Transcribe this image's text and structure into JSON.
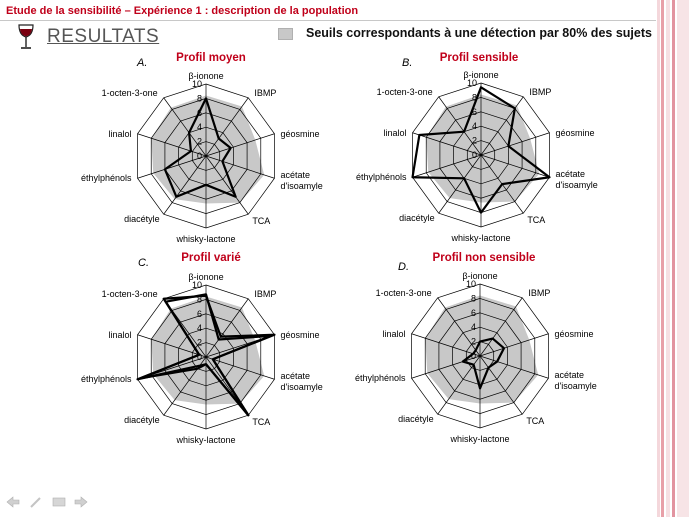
{
  "header": {
    "title": "Etude de la sensibilité – Expérience 1 : description de la population",
    "section": "RESULTATS",
    "legend_label": "Seuils correspondants à une détection par 80% des sujets"
  },
  "colors": {
    "title_red": "#c0001a",
    "threshold_fill": "#c8c8c8",
    "profile_line": "#000000",
    "grid": "#000000",
    "right_border": "#e8a0a8"
  },
  "icons": {
    "glass": "wine-glass-icon",
    "nav": [
      "arrow-left-icon",
      "pen-icon",
      "screen-icon",
      "arrow-right-icon"
    ]
  },
  "chart_data": [
    {
      "type": "radar",
      "letter": "A.",
      "title": "Profil moyen",
      "axes": [
        "β-ionone",
        "IBMP",
        "géosmine",
        "acétate d'isoamyle",
        "TCA",
        "whisky-lactone",
        "diacétyle",
        "éthylphénols",
        "linalol",
        "1-octen-3-one"
      ],
      "axis_labels": [
        [
          "β-ionone"
        ],
        [
          "IBMP"
        ],
        [
          "géosmine"
        ],
        [
          "acétate",
          "d'isoamyle"
        ],
        [
          "TCA"
        ],
        [
          "whisky-lactone"
        ],
        [
          "diacétyle"
        ],
        [
          "éthylphénols"
        ],
        [
          "linalol"
        ],
        [
          "1-octen-3-one"
        ]
      ],
      "ticks": [
        0,
        2,
        4,
        6,
        8,
        10
      ],
      "range": [
        0,
        10
      ],
      "series": [
        {
          "values": [
            8.4,
            8.5,
            7.2,
            8.5,
            8.0,
            6.6,
            7.4,
            7.7,
            8.0,
            8.3
          ]
        },
        {
          "values": [
            8.0,
            3.0,
            3.6,
            2.4,
            7.0,
            4.0,
            7.0,
            6.0,
            2.2,
            4.0
          ]
        }
      ]
    },
    {
      "type": "radar",
      "letter": "B.",
      "title": "Profil sensible",
      "axes": [
        "β-ionone",
        "IBMP",
        "géosmine",
        "acétate d'isoamyle",
        "TCA",
        "whisky-lactone",
        "diacétyle",
        "éthylphénols",
        "linalol",
        "1-octen-3-one"
      ],
      "axis_labels": [
        [
          "β-ionone"
        ],
        [
          "IBMP"
        ],
        [
          "géosmine"
        ],
        [
          "acétate",
          "d'isoamyle"
        ],
        [
          "TCA"
        ],
        [
          "whisky-lactone"
        ],
        [
          "diacétyle"
        ],
        [
          "éthylphénols"
        ],
        [
          "linalol"
        ],
        [
          "1-octen-3-one"
        ]
      ],
      "ticks": [
        0,
        2,
        4,
        6,
        8,
        10
      ],
      "range": [
        0,
        10
      ],
      "series": [
        {
          "values": [
            8.4,
            8.5,
            7.2,
            8.5,
            8.0,
            6.6,
            7.4,
            7.7,
            8.0,
            8.3
          ]
        },
        {
          "values": [
            9.4,
            8.0,
            4.0,
            10.0,
            5.0,
            8.0,
            4.0,
            10.0,
            9.0,
            4.0
          ]
        }
      ]
    },
    {
      "type": "radar",
      "letter": "C.",
      "title": "Profil varié",
      "axes": [
        "β-ionone",
        "IBMP",
        "géosmine",
        "acétate d'isoamyle",
        "TCA",
        "whisky-lactone",
        "diacétyle",
        "éthylphénols",
        "linalol",
        "1-octen-3-one"
      ],
      "axis_labels": [
        [
          "β-ionone"
        ],
        [
          "IBMP"
        ],
        [
          "géosmine"
        ],
        [
          "acétate",
          "d'isoamyle"
        ],
        [
          "TCA"
        ],
        [
          "whisky-lactone"
        ],
        [
          "diacétyle"
        ],
        [
          "éthylphénols"
        ],
        [
          "linalol"
        ],
        [
          "1-octen-3-one"
        ]
      ],
      "ticks": [
        0,
        2,
        4,
        6,
        8,
        10
      ],
      "range": [
        0,
        10
      ],
      "series": [
        {
          "values": [
            8.4,
            8.5,
            7.2,
            8.5,
            8.0,
            6.6,
            7.4,
            7.7,
            8.0,
            8.3
          ]
        },
        {
          "values": [
            8.5,
            3.5,
            10.0,
            1.0,
            10.0,
            1.0,
            1.5,
            10.0,
            1.0,
            10.0
          ]
        },
        {
          "values": [
            8.7,
            3.0,
            9.5,
            1.0,
            10.0,
            1.0,
            2.0,
            9.5,
            1.0,
            9.5
          ]
        }
      ]
    },
    {
      "type": "radar",
      "letter": "D.",
      "title": "Profil non sensible",
      "axes": [
        "β-ionone",
        "IBMP",
        "géosmine",
        "acétate d'isoamyle",
        "TCA",
        "whisky-lactone",
        "diacétyle",
        "éthylphénols",
        "linalol",
        "1-octen-3-one"
      ],
      "axis_labels": [
        [
          "β-ionone"
        ],
        [
          "IBMP"
        ],
        [
          "géosmine"
        ],
        [
          "acétate",
          "d'isoamyle"
        ],
        [
          "TCA"
        ],
        [
          "whisky-lactone"
        ],
        [
          "diacétyle"
        ],
        [
          "éthylphénols"
        ],
        [
          "linalol"
        ],
        [
          "1-octen-3-one"
        ]
      ],
      "ticks": [
        0,
        2,
        4,
        6,
        8,
        10
      ],
      "range": [
        0,
        10
      ],
      "series": [
        {
          "values": [
            8.4,
            8.5,
            7.2,
            8.5,
            8.0,
            6.6,
            7.4,
            7.7,
            8.0,
            8.3
          ]
        },
        {
          "values": [
            2.0,
            3.0,
            3.5,
            2.5,
            2.0,
            4.5,
            1.5,
            2.5,
            1.0,
            1.0
          ]
        }
      ]
    }
  ]
}
